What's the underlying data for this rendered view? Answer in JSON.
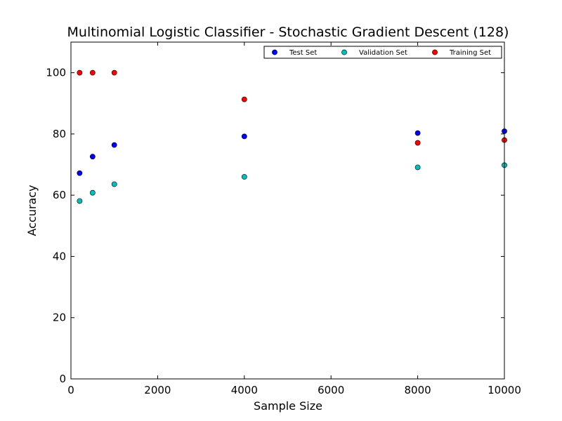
{
  "chart_data": {
    "type": "scatter",
    "title": "Multinomial Logistic Classifier - Stochastic Gradient Descent (128)",
    "xlabel": "Sample Size",
    "ylabel": "Accuracy",
    "xlim": [
      0,
      10000
    ],
    "ylim": [
      0,
      110
    ],
    "xticks": [
      0,
      2000,
      4000,
      6000,
      8000,
      10000
    ],
    "yticks": [
      0,
      20,
      40,
      60,
      80,
      100
    ],
    "xtick_labels": [
      "0",
      "2000",
      "4000",
      "6000",
      "8000",
      "10000"
    ],
    "ytick_labels": [
      "0",
      "20",
      "40",
      "60",
      "80",
      "100"
    ],
    "grid": false,
    "legend_position": "top-right",
    "series": [
      {
        "name": "Test Set",
        "color": "#0000ff",
        "x": [
          200,
          500,
          1000,
          4000,
          8000,
          10000
        ],
        "y": [
          67.2,
          72.6,
          76.4,
          79.2,
          80.3,
          80.9
        ]
      },
      {
        "name": "Validation Set",
        "color": "#00bfbf",
        "x": [
          200,
          500,
          1000,
          4000,
          8000,
          10000
        ],
        "y": [
          58.1,
          60.8,
          63.6,
          66.0,
          69.1,
          69.8
        ]
      },
      {
        "name": "Training Set",
        "color": "#ff0000",
        "x": [
          200,
          500,
          1000,
          4000,
          8000,
          10000
        ],
        "y": [
          100,
          100,
          100,
          91.3,
          77.1,
          78.0
        ]
      }
    ]
  }
}
